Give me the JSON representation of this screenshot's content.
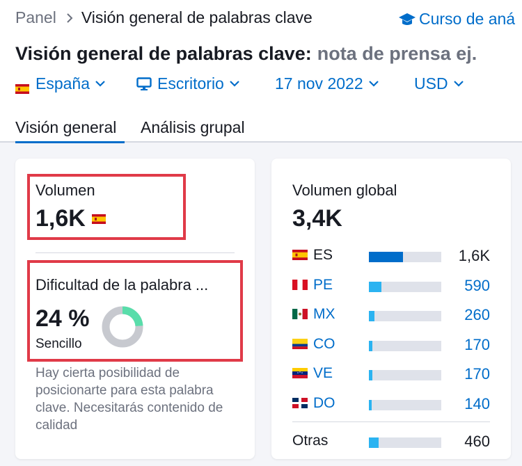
{
  "breadcrumb": {
    "root": "Panel",
    "current": "Visión general de palabras clave"
  },
  "course_link": "Curso de aná",
  "title": {
    "prefix": "Visión general de palabras clave:",
    "keyword": "nota de prensa ej."
  },
  "filters": {
    "country": "España",
    "device": "Escritorio",
    "date": "17 nov 2022",
    "currency": "USD"
  },
  "tabs": [
    {
      "label": "Visión general",
      "active": true
    },
    {
      "label": "Análisis grupal",
      "active": false
    }
  ],
  "volume": {
    "label": "Volumen",
    "value": "1,6K"
  },
  "difficulty": {
    "label": "Dificultad de la palabra ...",
    "value": "24 %",
    "level": "Sencillo",
    "percent": 24,
    "description": "Hay cierta posibilidad de posicionarte para esta palabra clave. Necesitarás contenido de calidad"
  },
  "global_volume": {
    "label": "Volumen global",
    "value": "3,4K",
    "rows": [
      {
        "code": "ES",
        "value": "1,6K",
        "share": 0.47,
        "linked": false
      },
      {
        "code": "PE",
        "value": "590",
        "share": 0.17,
        "linked": true
      },
      {
        "code": "MX",
        "value": "260",
        "share": 0.08,
        "linked": true
      },
      {
        "code": "CO",
        "value": "170",
        "share": 0.05,
        "linked": true
      },
      {
        "code": "VE",
        "value": "170",
        "share": 0.05,
        "linked": true
      },
      {
        "code": "DO",
        "value": "140",
        "share": 0.04,
        "linked": true
      }
    ],
    "others": {
      "label": "Otras",
      "value": "460",
      "share": 0.13
    }
  },
  "colors": {
    "accent": "#006dca",
    "highlight_box": "#e03a48",
    "bar_dark": "#006dca",
    "bar_light": "#2bb3f1",
    "donut_fill": "#59ddaa",
    "donut_track": "#c7c9cf"
  }
}
